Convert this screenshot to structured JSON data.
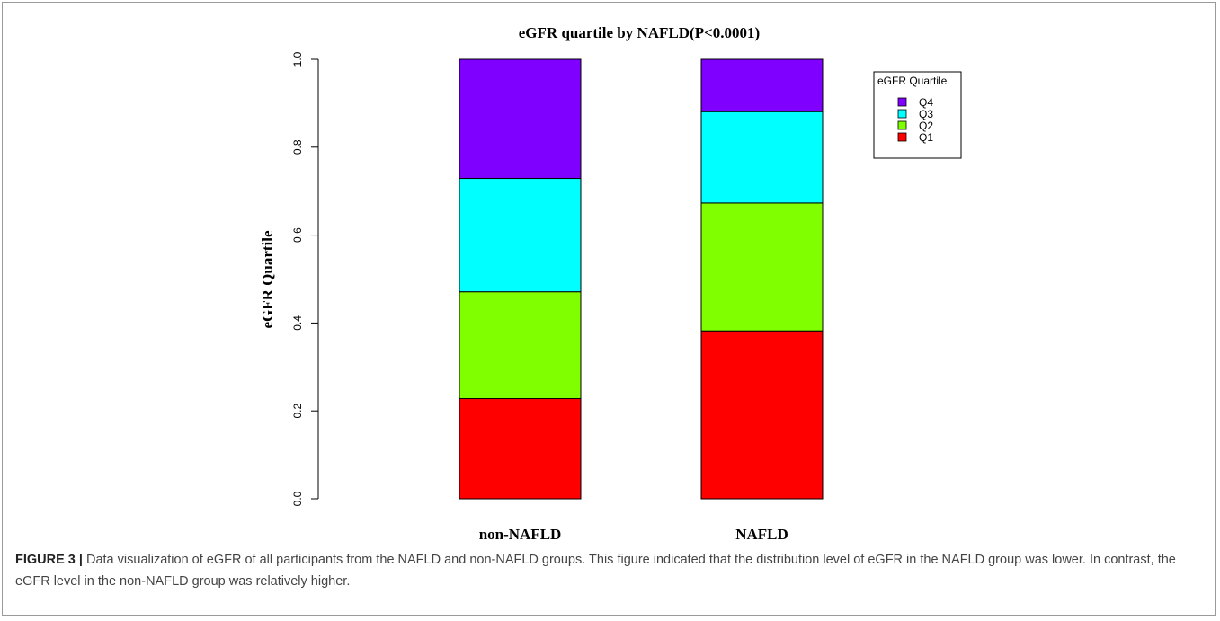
{
  "chart_data": {
    "type": "bar",
    "stacked": true,
    "title": "eGFR quartile by NAFLD(P<0.0001)",
    "xlabel": "",
    "ylabel": "eGFR Quartile",
    "categories": [
      "non-NAFLD",
      "NAFLD"
    ],
    "ylim": [
      0,
      1
    ],
    "yticks": [
      "0.0",
      "0.2",
      "0.4",
      "0.6",
      "0.8",
      "1.0"
    ],
    "series": [
      {
        "name": "Q1",
        "color": "#ff0000",
        "values": [
          0.228,
          0.382
        ]
      },
      {
        "name": "Q2",
        "color": "#80ff00",
        "values": [
          0.243,
          0.291
        ]
      },
      {
        "name": "Q3",
        "color": "#00ffff",
        "values": [
          0.258,
          0.208
        ]
      },
      {
        "name": "Q4",
        "color": "#8000ff",
        "values": [
          0.271,
          0.119
        ]
      }
    ],
    "legend": {
      "title": "eGFR Quartile",
      "placement": "top-right",
      "order": [
        "Q4",
        "Q3",
        "Q2",
        "Q1"
      ]
    },
    "grid": false
  },
  "caption": {
    "label": "FIGURE 3 |",
    "text": " Data visualization of eGFR of all participants from the NAFLD and non-NAFLD groups. This figure indicated that the distribution level of eGFR in the NAFLD group was lower. In contrast, the eGFR level in the non-NAFLD group was relatively higher."
  }
}
